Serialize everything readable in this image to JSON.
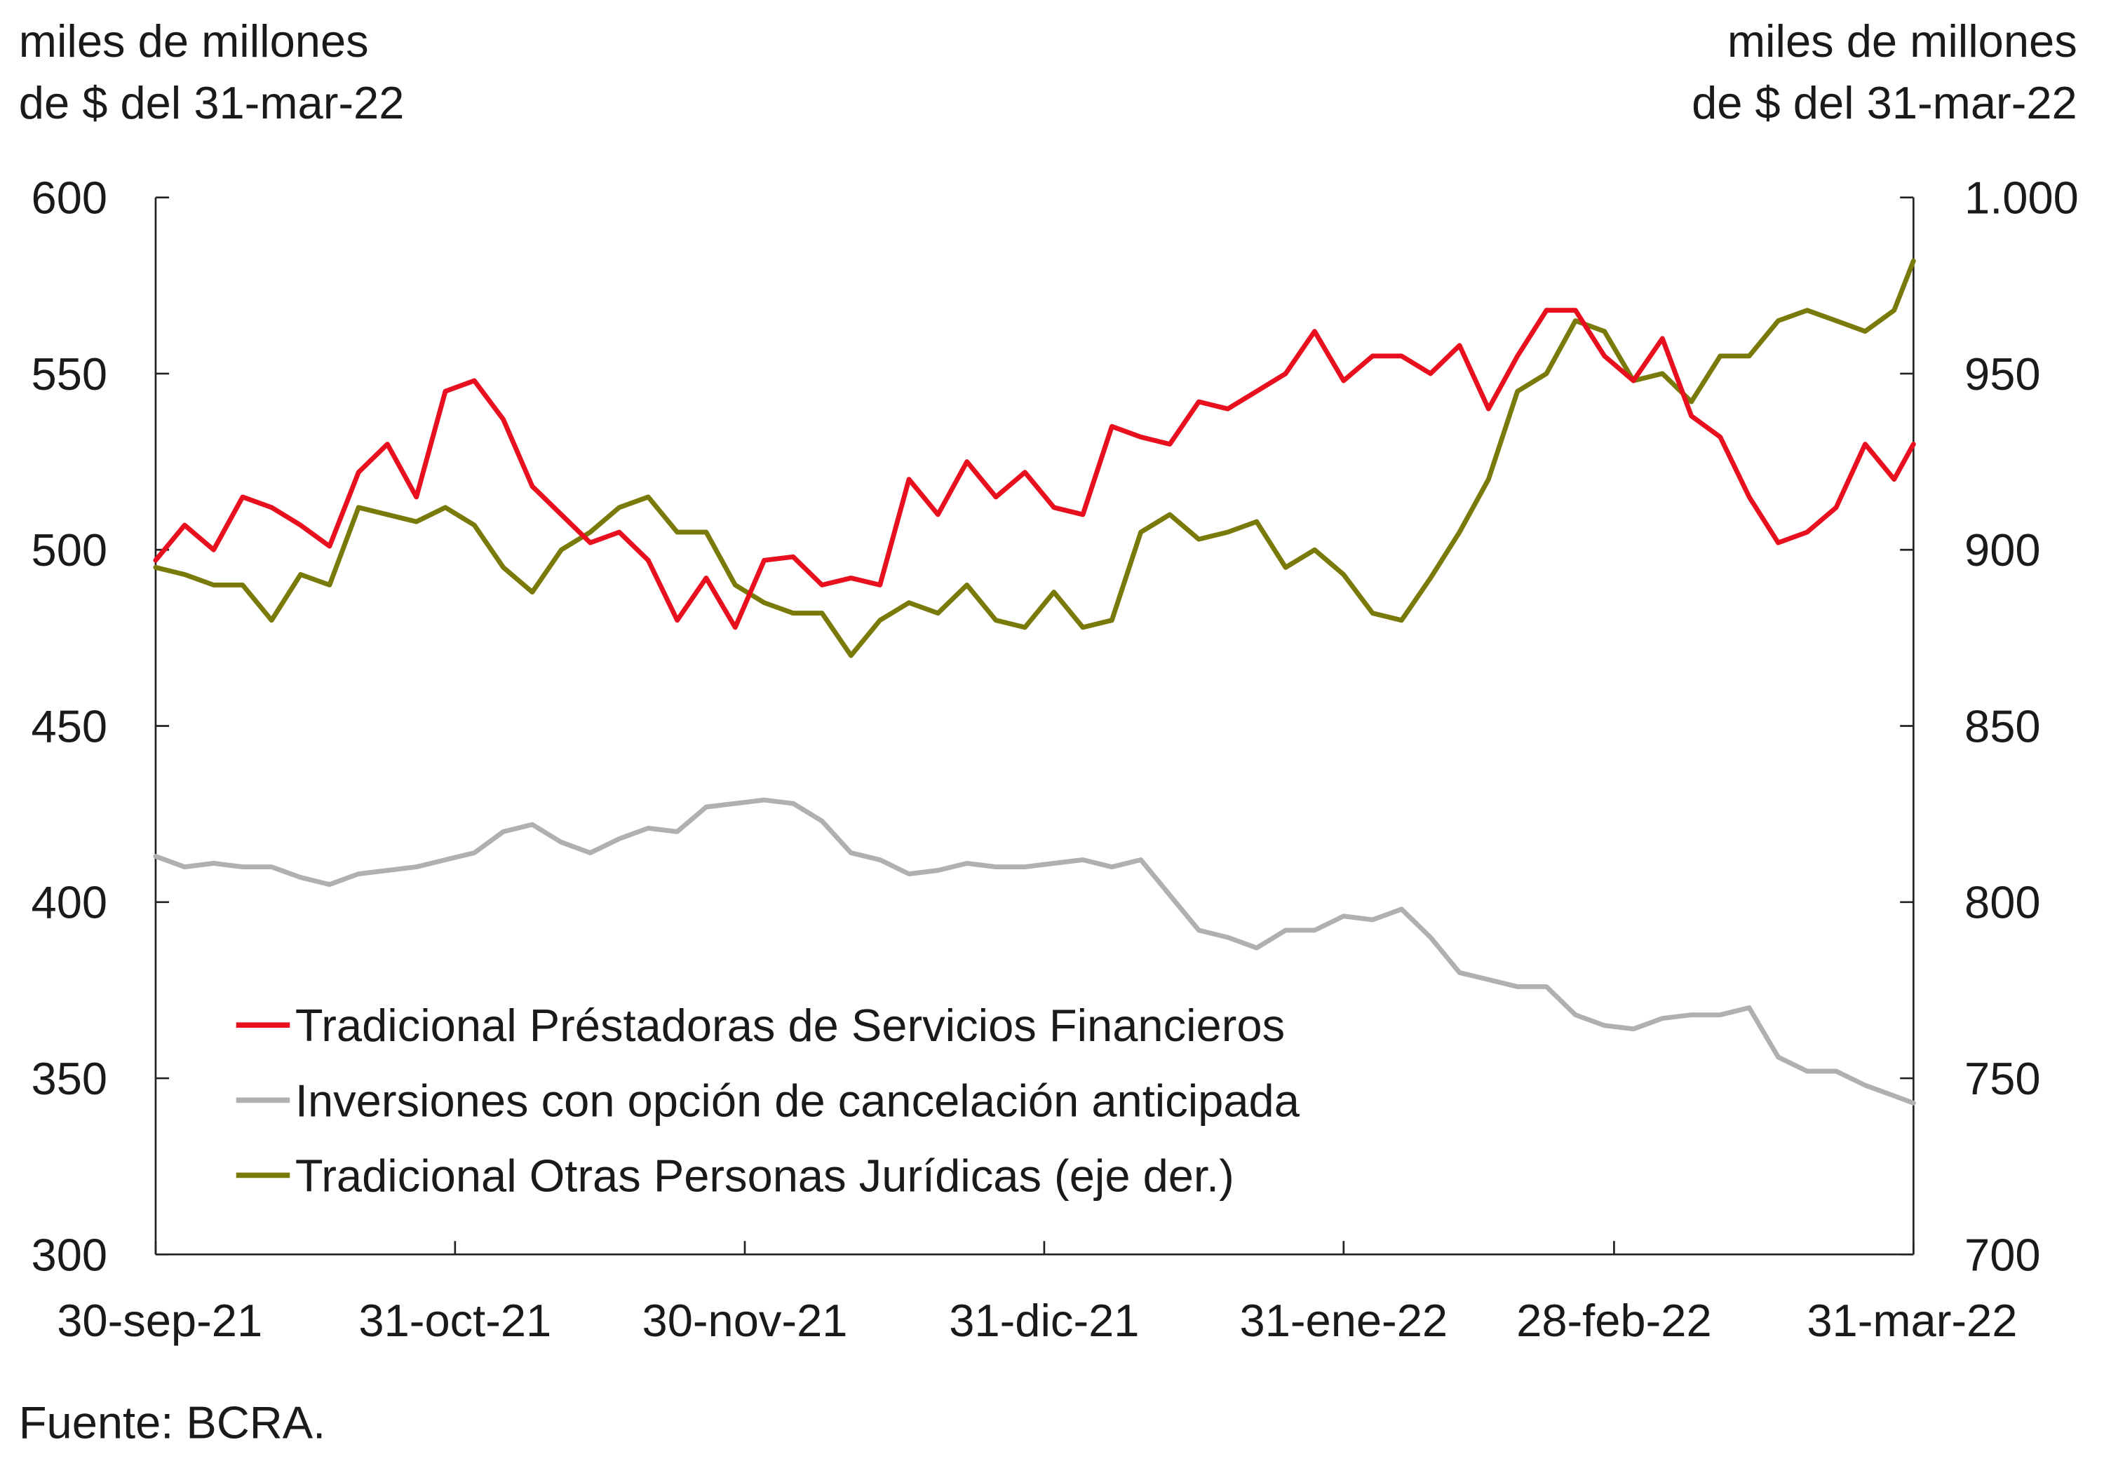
{
  "chart_data": {
    "type": "line",
    "title": "",
    "ylabel_left": [
      "miles de millones",
      "de $ del 31-mar-22"
    ],
    "ylabel_right": [
      "miles de millones",
      "de $ del 31-mar-22"
    ],
    "ylim_left": [
      300,
      600
    ],
    "ylim_right": [
      700,
      1000
    ],
    "yticks_left": [
      "600",
      "550",
      "500",
      "450",
      "400",
      "350",
      "300"
    ],
    "yticks_right": [
      "1.000",
      "950",
      "900",
      "850",
      "800",
      "750",
      "700"
    ],
    "xlim": [
      "2021-09-30",
      "2022-03-31"
    ],
    "xticks": [
      {
        "date": "2021-09-30",
        "label": "30-sep-21"
      },
      {
        "date": "2021-10-31",
        "label": "31-oct-21"
      },
      {
        "date": "2021-11-30",
        "label": "30-nov-21"
      },
      {
        "date": "2021-12-31",
        "label": "31-dic-21"
      },
      {
        "date": "2022-01-31",
        "label": "31-ene-22"
      },
      {
        "date": "2022-02-28",
        "label": "28-feb-22"
      },
      {
        "date": "2022-03-31",
        "label": "31-mar-22"
      }
    ],
    "grid": false,
    "legend_placement": "bottom-left",
    "source": "Fuente: BCRA.",
    "dates": [
      "2021-09-30",
      "2021-10-03",
      "2021-10-06",
      "2021-10-09",
      "2021-10-12",
      "2021-10-15",
      "2021-10-18",
      "2021-10-21",
      "2021-10-24",
      "2021-10-27",
      "2021-10-30",
      "2021-11-02",
      "2021-11-05",
      "2021-11-08",
      "2021-11-11",
      "2021-11-14",
      "2021-11-17",
      "2021-11-20",
      "2021-11-23",
      "2021-11-26",
      "2021-11-29",
      "2021-12-02",
      "2021-12-05",
      "2021-12-08",
      "2021-12-11",
      "2021-12-14",
      "2021-12-17",
      "2021-12-20",
      "2021-12-23",
      "2021-12-26",
      "2021-12-29",
      "2022-01-01",
      "2022-01-04",
      "2022-01-07",
      "2022-01-10",
      "2022-01-13",
      "2022-01-16",
      "2022-01-19",
      "2022-01-22",
      "2022-01-25",
      "2022-01-28",
      "2022-01-31",
      "2022-02-03",
      "2022-02-06",
      "2022-02-09",
      "2022-02-12",
      "2022-02-15",
      "2022-02-18",
      "2022-02-21",
      "2022-02-24",
      "2022-02-27",
      "2022-03-02",
      "2022-03-05",
      "2022-03-08",
      "2022-03-11",
      "2022-03-14",
      "2022-03-17",
      "2022-03-20",
      "2022-03-23",
      "2022-03-26",
      "2022-03-29",
      "2022-03-31"
    ],
    "series": [
      {
        "name": "Tradicional Préstadoras de Servicios Financieros",
        "axis": "left",
        "color": "#e8101e",
        "values": [
          497,
          507,
          500,
          515,
          512,
          507,
          501,
          522,
          530,
          515,
          545,
          548,
          537,
          518,
          510,
          502,
          505,
          497,
          480,
          492,
          478,
          497,
          498,
          490,
          492,
          490,
          520,
          510,
          525,
          515,
          522,
          512,
          510,
          535,
          532,
          530,
          542,
          540,
          545,
          550,
          562,
          548,
          555,
          555,
          550,
          558,
          540,
          555,
          568,
          568,
          555,
          548,
          560,
          538,
          532,
          515,
          502,
          505,
          512,
          530,
          520,
          530
        ]
      },
      {
        "name": "Inversiones con opción de cancelación anticipada",
        "axis": "left",
        "color": "#b0b0b0",
        "values": [
          413,
          410,
          411,
          410,
          410,
          407,
          405,
          408,
          409,
          410,
          412,
          414,
          420,
          422,
          417,
          414,
          418,
          421,
          420,
          427,
          428,
          429,
          428,
          423,
          414,
          412,
          408,
          409,
          411,
          410,
          410,
          411,
          412,
          410,
          412,
          402,
          392,
          390,
          387,
          392,
          392,
          396,
          395,
          398,
          390,
          380,
          378,
          376,
          376,
          368,
          365,
          364,
          367,
          368,
          368,
          370,
          356,
          352,
          352,
          348,
          345,
          343
        ]
      },
      {
        "name": "Tradicional Otras Personas Jurídicas (eje der.)",
        "axis": "right",
        "color": "#7a7a0a",
        "values": [
          895,
          893,
          890,
          890,
          880,
          893,
          890,
          912,
          910,
          908,
          912,
          907,
          895,
          888,
          900,
          905,
          912,
          915,
          905,
          905,
          890,
          885,
          882,
          882,
          870,
          880,
          885,
          882,
          890,
          880,
          878,
          888,
          878,
          880,
          905,
          910,
          903,
          905,
          908,
          895,
          900,
          893,
          882,
          880,
          892,
          905,
          920,
          945,
          950,
          965,
          962,
          948,
          950,
          942,
          955,
          955,
          965,
          968,
          965,
          962,
          968,
          982
        ]
      }
    ]
  }
}
